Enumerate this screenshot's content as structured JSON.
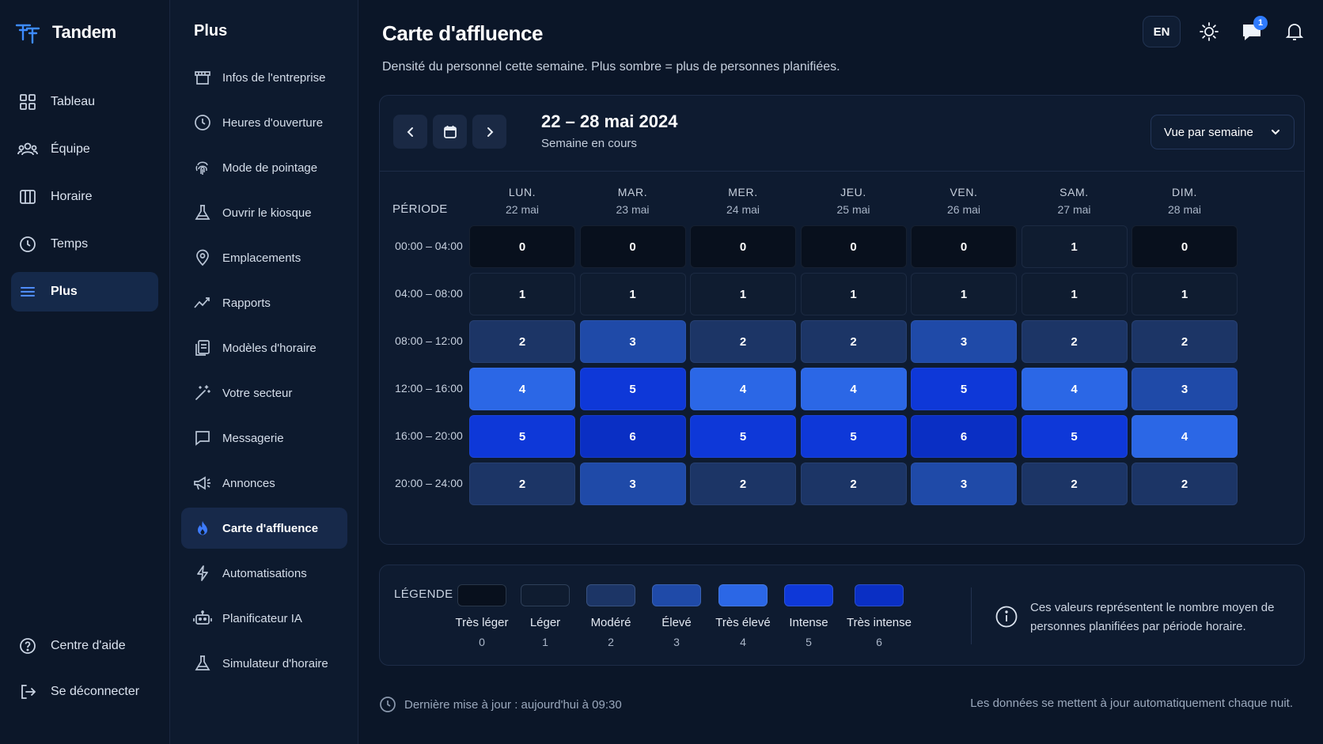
{
  "app": {
    "name": "Tandem",
    "logo_icon": "tandem-logo-icon"
  },
  "colors": {
    "accent": "#3d7bff",
    "level_0": "#08101d",
    "level_1": "#0f1c30",
    "level_2": "#1c3566",
    "level_3": "#1f4aa8",
    "level_4": "#2b67e6",
    "level_5": "#0e38d8",
    "level_6": "#0a2fc4"
  },
  "sidebar": {
    "items": [
      {
        "label": "Tableau",
        "icon": "dashboard-grid-icon",
        "active": false
      },
      {
        "label": "Équipe",
        "icon": "team-icon",
        "active": false
      },
      {
        "label": "Horaire",
        "icon": "schedule-columns-icon",
        "active": false
      },
      {
        "label": "Temps",
        "icon": "clock-icon",
        "active": false
      },
      {
        "label": "Plus",
        "icon": "menu-lines-icon",
        "active": true
      }
    ],
    "bottom": [
      {
        "label": "Centre d'aide",
        "icon": "help-circle-icon"
      },
      {
        "label": "Se déconnecter",
        "icon": "logout-icon"
      }
    ]
  },
  "subpanel": {
    "title": "Plus",
    "items": [
      {
        "label": "Infos de l'entreprise",
        "icon": "store-icon"
      },
      {
        "label": "Heures d'ouverture",
        "icon": "clock-icon"
      },
      {
        "label": "Mode de pointage",
        "icon": "fingerprint-icon"
      },
      {
        "label": "Ouvrir le kiosque",
        "icon": "flask-icon"
      },
      {
        "label": "Emplacements",
        "icon": "map-pin-icon"
      },
      {
        "label": "Rapports",
        "icon": "chart-line-icon"
      },
      {
        "label": "Modèles d'horaire",
        "icon": "templates-icon"
      },
      {
        "label": "Votre secteur",
        "icon": "magic-wand-icon"
      },
      {
        "label": "Messagerie",
        "icon": "message-icon"
      },
      {
        "label": "Annonces",
        "icon": "megaphone-icon"
      },
      {
        "label": "Carte d'affluence",
        "icon": "flame-icon",
        "active": true
      },
      {
        "label": "Automatisations",
        "icon": "bolt-icon"
      },
      {
        "label": "Planificateur IA",
        "icon": "robot-icon"
      },
      {
        "label": "Simulateur d'horaire",
        "icon": "flask-icon"
      }
    ]
  },
  "header": {
    "title": "Carte d'affluence",
    "subtitle": "Densité du personnel cette semaine. Plus sombre = plus de personnes planifiées.",
    "lang": "EN",
    "theme_icon": "sun-icon",
    "messages_icon": "chat-bubble-icon",
    "messages_badge": "1",
    "notifications_icon": "bell-icon"
  },
  "toolbar": {
    "prev_icon": "chevron-left-icon",
    "calendar_icon": "calendar-icon",
    "next_icon": "chevron-right-icon",
    "range_title": "22 – 28 mai 2024",
    "range_sub": "Semaine en cours",
    "view_select": "Vue par semaine",
    "view_select_icon": "chevron-down-icon"
  },
  "heatmap": {
    "period_header": "PÉRIODE",
    "days": [
      {
        "name": "LUN.",
        "date": "22 mai"
      },
      {
        "name": "MAR.",
        "date": "23 mai"
      },
      {
        "name": "MER.",
        "date": "24 mai"
      },
      {
        "name": "JEU.",
        "date": "25 mai"
      },
      {
        "name": "VEN.",
        "date": "26 mai"
      },
      {
        "name": "SAM.",
        "date": "27 mai"
      },
      {
        "name": "DIM.",
        "date": "28 mai"
      }
    ],
    "periods": [
      "00:00 – 04:00",
      "04:00 – 08:00",
      "08:00 – 12:00",
      "12:00 – 16:00",
      "16:00 – 20:00",
      "20:00 – 24:00"
    ],
    "values": [
      [
        0,
        0,
        0,
        0,
        0,
        1,
        0
      ],
      [
        1,
        1,
        1,
        1,
        1,
        1,
        1
      ],
      [
        2,
        3,
        2,
        2,
        3,
        2,
        2
      ],
      [
        4,
        5,
        4,
        4,
        5,
        4,
        3
      ],
      [
        5,
        6,
        5,
        5,
        6,
        5,
        4
      ],
      [
        2,
        3,
        2,
        2,
        3,
        2,
        2
      ]
    ]
  },
  "legend": {
    "title": "LÉGENDE",
    "items": [
      {
        "label": "Très léger",
        "value": "0"
      },
      {
        "label": "Léger",
        "value": "1"
      },
      {
        "label": "Modéré",
        "value": "2"
      },
      {
        "label": "Élevé",
        "value": "3"
      },
      {
        "label": "Très élevé",
        "value": "4"
      },
      {
        "label": "Intense",
        "value": "5"
      },
      {
        "label": "Très intense",
        "value": "6"
      }
    ],
    "info_icon": "info-circle-icon",
    "note": "Ces valeurs représentent le nombre moyen de personnes planifiées par période horaire."
  },
  "footer": {
    "updated_icon": "clock-icon",
    "updated": "Dernière mise à jour : aujourd'hui à 09:30",
    "auto_note": "Les données se mettent à jour automatiquement chaque nuit."
  }
}
